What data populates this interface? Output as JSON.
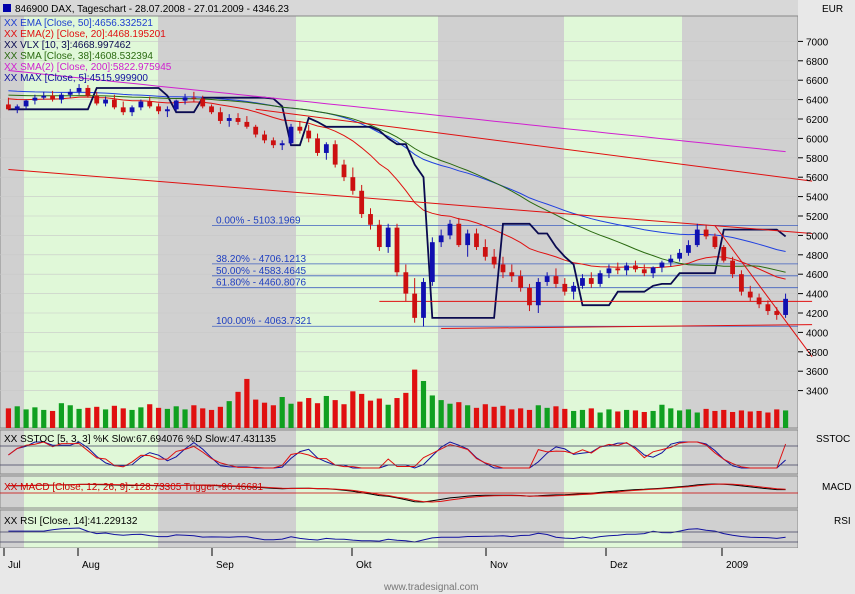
{
  "header": {
    "symbol_line": "846900  DAX, Tageschart - 28.07.2008 - 27.01.2009 - 4346.23",
    "currency": "EUR",
    "indicators": [
      {
        "prefix": "XX",
        "text": "EMA [Close, 50]:4656.332521",
        "color": "#1f3fd0"
      },
      {
        "prefix": "XX",
        "text": "EMA(2) [Close, 20]:4468.195201",
        "color": "#e01010"
      },
      {
        "prefix": "XX",
        "text": "VLX [10, 3]:4668.997462",
        "color": "#0a0a50"
      },
      {
        "prefix": "XX",
        "text": "SMA [Close, 38]:4608.532394",
        "color": "#2a6a10"
      },
      {
        "prefix": "XX",
        "text": "SMA(2) [Close, 200]:5822.975945",
        "color": "#d020d0"
      },
      {
        "prefix": "XX",
        "text": "MAX [Close, 5]:4515.999900",
        "color": "#1010a0"
      }
    ]
  },
  "panels": {
    "stoch": {
      "legend": "XX SSTOC [5, 3, 3] %K Slow:67.694076 %D Slow:47.431135",
      "tag": "SSTOC"
    },
    "macd": {
      "legend": "XX MACD [Close, 12, 26, 9]:-128.73305 Trigger:-96.46681",
      "tag": "MACD"
    },
    "rsi": {
      "legend": "XX RSI [Close, 14]:41.229132",
      "tag": "RSI"
    }
  },
  "fibonacci": [
    {
      "label": "0.00% - 5103.1969",
      "value": 5103.1969
    },
    {
      "label": "38.20% - 4706.1213",
      "value": 4706.1213
    },
    {
      "label": "50.00% - 4583.4645",
      "value": 4583.4645
    },
    {
      "label": "61.80% - 4460.8076",
      "value": 4460.8076
    },
    {
      "label": "100.00% - 4063.7321",
      "value": 4063.7321
    }
  ],
  "watermark": "www.tradesignal.com",
  "chart_data": {
    "type": "candlestick",
    "ylim": [
      3200,
      7200
    ],
    "y_ticks": [
      3400,
      3600,
      3800,
      4000,
      4200,
      4400,
      4600,
      4800,
      5000,
      5200,
      5400,
      5600,
      5800,
      6000,
      6200,
      6400,
      6600,
      6800,
      7000
    ],
    "x_ticks": [
      "Jul",
      "Aug",
      "Sep",
      "Okt",
      "Nov",
      "Dez",
      "2009"
    ],
    "month_shading": [
      {
        "label": "Aug",
        "color": "#e0f8d8"
      },
      {
        "label": "Sep",
        "color": "#d0d0d0"
      },
      {
        "label": "Okt",
        "color": "#e0f8d8"
      },
      {
        "label": "Nov",
        "color": "#d0d0d0"
      },
      {
        "label": "Dez",
        "color": "#e0f8d8"
      }
    ],
    "candles": [
      [
        6350,
        6420,
        6290,
        6300
      ],
      [
        6300,
        6350,
        6260,
        6330
      ],
      [
        6330,
        6400,
        6300,
        6390
      ],
      [
        6390,
        6450,
        6350,
        6420
      ],
      [
        6420,
        6480,
        6400,
        6440
      ],
      [
        6440,
        6490,
        6380,
        6400
      ],
      [
        6400,
        6470,
        6360,
        6450
      ],
      [
        6450,
        6510,
        6420,
        6480
      ],
      [
        6480,
        6560,
        6450,
        6520
      ],
      [
        6520,
        6550,
        6420,
        6440
      ],
      [
        6440,
        6480,
        6340,
        6360
      ],
      [
        6360,
        6430,
        6330,
        6400
      ],
      [
        6400,
        6450,
        6300,
        6320
      ],
      [
        6320,
        6380,
        6240,
        6270
      ],
      [
        6270,
        6340,
        6230,
        6320
      ],
      [
        6320,
        6400,
        6290,
        6380
      ],
      [
        6380,
        6430,
        6310,
        6330
      ],
      [
        6330,
        6360,
        6250,
        6280
      ],
      [
        6280,
        6330,
        6220,
        6300
      ],
      [
        6300,
        6400,
        6280,
        6390
      ],
      [
        6390,
        6460,
        6350,
        6420
      ],
      [
        6420,
        6480,
        6380,
        6410
      ],
      [
        6410,
        6440,
        6310,
        6330
      ],
      [
        6330,
        6350,
        6250,
        6270
      ],
      [
        6270,
        6320,
        6150,
        6180
      ],
      [
        6180,
        6250,
        6120,
        6210
      ],
      [
        6210,
        6260,
        6140,
        6170
      ],
      [
        6170,
        6230,
        6100,
        6120
      ],
      [
        6120,
        6140,
        6010,
        6040
      ],
      [
        6040,
        6080,
        5950,
        5980
      ],
      [
        5980,
        6010,
        5900,
        5930
      ],
      [
        5930,
        5980,
        5880,
        5950
      ],
      [
        5950,
        6150,
        5930,
        6120
      ],
      [
        6120,
        6180,
        6050,
        6080
      ],
      [
        6080,
        6140,
        5960,
        6000
      ],
      [
        6000,
        6050,
        5820,
        5850
      ],
      [
        5850,
        5960,
        5780,
        5940
      ],
      [
        5940,
        5980,
        5700,
        5730
      ],
      [
        5730,
        5780,
        5560,
        5600
      ],
      [
        5600,
        5700,
        5420,
        5460
      ],
      [
        5460,
        5520,
        5180,
        5220
      ],
      [
        5220,
        5280,
        5060,
        5110
      ],
      [
        5110,
        5160,
        4840,
        4880
      ],
      [
        4880,
        5120,
        4820,
        5080
      ],
      [
        5080,
        5120,
        4580,
        4620
      ],
      [
        4620,
        4700,
        4320,
        4400
      ],
      [
        4400,
        4560,
        4100,
        4150
      ],
      [
        4150,
        4560,
        4060,
        4520
      ],
      [
        4520,
        4980,
        4480,
        4930
      ],
      [
        4930,
        5060,
        4880,
        5000
      ],
      [
        5000,
        5160,
        4960,
        5120
      ],
      [
        5120,
        5180,
        4880,
        4900
      ],
      [
        4900,
        5060,
        4780,
        5020
      ],
      [
        5020,
        5070,
        4850,
        4880
      ],
      [
        4880,
        4960,
        4740,
        4780
      ],
      [
        4780,
        4860,
        4660,
        4700
      ],
      [
        4700,
        4780,
        4560,
        4620
      ],
      [
        4620,
        4700,
        4520,
        4580
      ],
      [
        4580,
        4640,
        4420,
        4460
      ],
      [
        4460,
        4500,
        4220,
        4280
      ],
      [
        4280,
        4560,
        4200,
        4520
      ],
      [
        4520,
        4620,
        4480,
        4580
      ],
      [
        4580,
        4660,
        4460,
        4500
      ],
      [
        4500,
        4560,
        4380,
        4420
      ],
      [
        4420,
        4520,
        4340,
        4480
      ],
      [
        4480,
        4600,
        4450,
        4560
      ],
      [
        4560,
        4620,
        4460,
        4500
      ],
      [
        4500,
        4640,
        4470,
        4610
      ],
      [
        4610,
        4700,
        4560,
        4660
      ],
      [
        4660,
        4720,
        4600,
        4640
      ],
      [
        4640,
        4720,
        4590,
        4690
      ],
      [
        4690,
        4740,
        4620,
        4650
      ],
      [
        4650,
        4700,
        4580,
        4610
      ],
      [
        4610,
        4680,
        4560,
        4670
      ],
      [
        4670,
        4740,
        4620,
        4720
      ],
      [
        4720,
        4800,
        4680,
        4760
      ],
      [
        4760,
        4860,
        4730,
        4820
      ],
      [
        4820,
        4950,
        4790,
        4900
      ],
      [
        4900,
        5120,
        4880,
        5060
      ],
      [
        5060,
        5110,
        4960,
        4990
      ],
      [
        4990,
        5020,
        4860,
        4880
      ],
      [
        4880,
        4900,
        4720,
        4740
      ],
      [
        4740,
        4780,
        4560,
        4600
      ],
      [
        4600,
        4640,
        4380,
        4420
      ],
      [
        4420,
        4480,
        4320,
        4360
      ],
      [
        4360,
        4400,
        4250,
        4290
      ],
      [
        4290,
        4330,
        4180,
        4220
      ],
      [
        4220,
        4260,
        4130,
        4180
      ],
      [
        4180,
        4400,
        4150,
        4346
      ]
    ],
    "volume": [
      38,
      42,
      36,
      40,
      35,
      33,
      48,
      44,
      37,
      39,
      41,
      36,
      43,
      38,
      35,
      40,
      46,
      39,
      37,
      42,
      36,
      44,
      38,
      35,
      41,
      52,
      70,
      95,
      55,
      49,
      44,
      60,
      47,
      51,
      58,
      48,
      62,
      54,
      46,
      71,
      66,
      53,
      57,
      45,
      58,
      68,
      113,
      91,
      63,
      54,
      47,
      50,
      44,
      39,
      46,
      41,
      43,
      36,
      38,
      35,
      44,
      39,
      42,
      37,
      33,
      35,
      38,
      30,
      36,
      32,
      35,
      34,
      31,
      33,
      45,
      38,
      34,
      36,
      30,
      37,
      33,
      35,
      31,
      34,
      32,
      33,
      30,
      36,
      34
    ],
    "lines": [
      {
        "name": "EMA [Close, 50]",
        "color": "#2040e0"
      },
      {
        "name": "EMA(2) [Close, 20]",
        "color": "#e01010"
      },
      {
        "name": "VLX [10, 3]",
        "color": "#0a0a50"
      },
      {
        "name": "SMA [Close, 38]",
        "color": "#2a6a10"
      },
      {
        "name": "SMA(2) [Close, 200]",
        "color": "#d020d0"
      }
    ],
    "trendlines": [
      {
        "from": [
          0,
          5680
        ],
        "to": [
          91,
          5020
        ],
        "color": "#e01010"
      },
      {
        "from": [
          28,
          6300
        ],
        "to": [
          91,
          5560
        ],
        "color": "#e01010"
      },
      {
        "from": [
          42,
          4320
        ],
        "to": [
          91,
          4320
        ],
        "color": "#e01010"
      },
      {
        "from": [
          49,
          4040
        ],
        "to": [
          91,
          4080
        ],
        "color": "#e01010"
      },
      {
        "from": [
          80,
          5100
        ],
        "to": [
          91,
          3750
        ],
        "color": "#e01010"
      }
    ]
  }
}
